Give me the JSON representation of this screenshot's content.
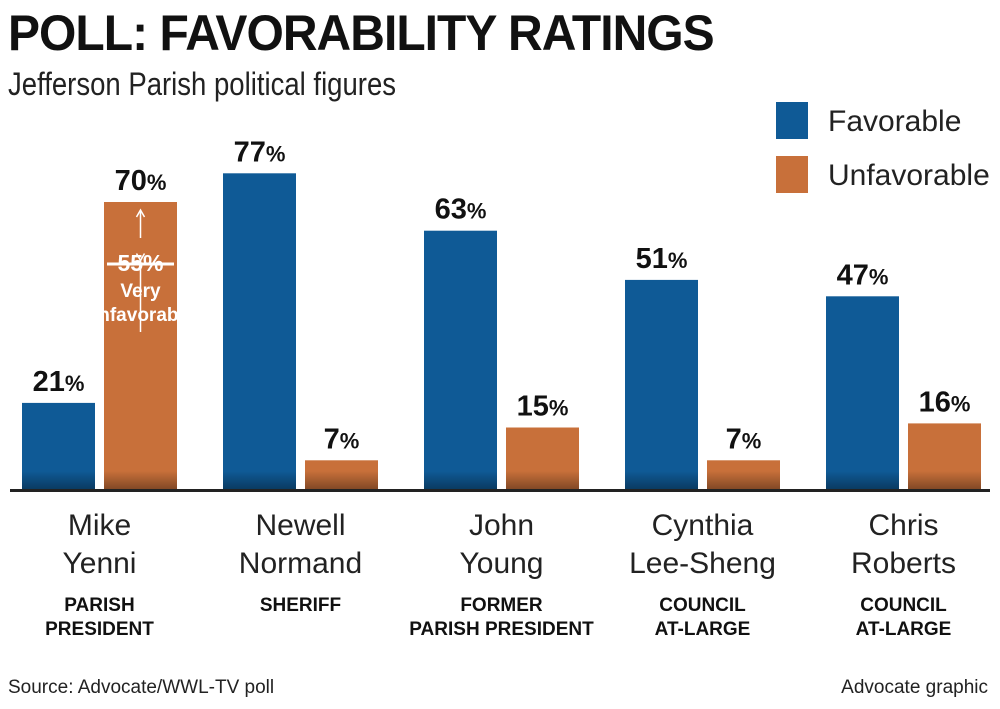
{
  "chart_data": {
    "type": "bar",
    "title": "POLL: FAVORABILITY RATINGS",
    "subtitle": "Jefferson Parish political figures",
    "categories": [
      {
        "name": [
          "Mike",
          "Yenni"
        ],
        "role": [
          "PARISH",
          "PRESIDENT"
        ]
      },
      {
        "name": [
          "Newell",
          "Normand"
        ],
        "role": [
          "SHERIFF"
        ]
      },
      {
        "name": [
          "John",
          "Young"
        ],
        "role": [
          "FORMER",
          "PARISH PRESIDENT"
        ]
      },
      {
        "name": [
          "Cynthia",
          "Lee-Sheng"
        ],
        "role": [
          "COUNCIL",
          "AT-LARGE"
        ]
      },
      {
        "name": [
          "Chris",
          "Roberts"
        ],
        "role": [
          "COUNCIL",
          "AT-LARGE"
        ]
      }
    ],
    "series": [
      {
        "name": "Favorable",
        "color": "#0f5a96",
        "values": [
          21,
          77,
          63,
          51,
          47
        ]
      },
      {
        "name": "Unfavorable",
        "color": "#c8703a",
        "values": [
          70,
          7,
          15,
          7,
          16
        ]
      }
    ],
    "value_suffix": "%",
    "ylim": [
      0,
      80
    ],
    "annotation": {
      "category_index": 0,
      "series": "Unfavorable",
      "value": 55,
      "value_label": "55%",
      "lines": [
        "Very",
        "unfavorable"
      ]
    },
    "legend": "top-right"
  },
  "source": "Source: Advocate/WWL-TV poll",
  "credit": "Advocate graphic"
}
